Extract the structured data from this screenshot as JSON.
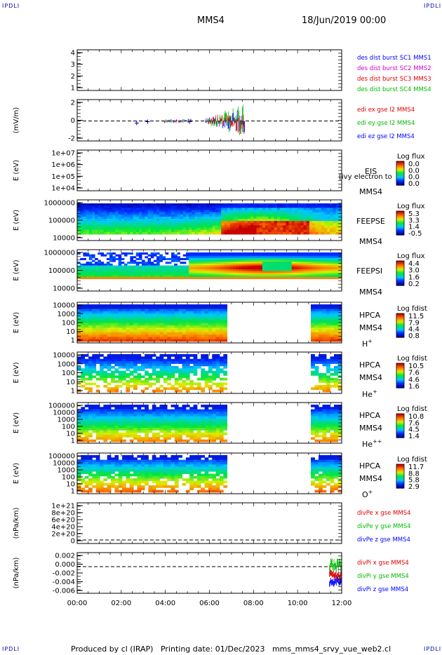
{
  "header": {
    "corner_logo": "IPDLI",
    "title": "MMS4",
    "date": "18/Jun/2019 00:00"
  },
  "footer": {
    "text": "Produced by cl (IRAP)   Printing date: 01/Dec/2023   mms_mms4_srvy_vue_web2.cl"
  },
  "chart_data": {
    "type": "multi-panel time series",
    "x": {
      "ticks": [
        "00:00",
        "02:00",
        "04:00",
        "06:00",
        "08:00",
        "10:00",
        "12:00"
      ],
      "range_hours": [
        0,
        12
      ]
    },
    "gap_hours": [
      6.8,
      10.6
    ],
    "panels": [
      {
        "id": "burst",
        "type": "line",
        "yticks": [
          "4",
          "3",
          "2",
          "1"
        ],
        "legend": [
          {
            "text": "des dist burst SC1 MMS1",
            "color": "#0000ff"
          },
          {
            "text": "des dist burst SC2 MMS2",
            "color": "#cc00cc"
          },
          {
            "text": "des dist burst SC3 MMS3",
            "color": "#dd0000"
          },
          {
            "text": "des dist burst SC4 MMS4",
            "color": "#00bb00"
          }
        ]
      },
      {
        "id": "edi",
        "type": "line",
        "ylabel": "(mV/m)",
        "yticks": [
          "2",
          "0",
          "-2"
        ],
        "dashed_zero": true,
        "legend": [
          {
            "text": "edi ex gse l2 MMS4",
            "color": "#dd0000"
          },
          {
            "text": "edi ey gse l2 MMS4",
            "color": "#00bb00"
          },
          {
            "text": "edi ez gse l2 MMS4",
            "color": "#0000ff"
          }
        ]
      },
      {
        "id": "eis",
        "type": "heatmap",
        "ylabel": "E (eV)",
        "yticks": [
          "1e+07",
          "1e+06",
          "1e+05",
          "1e+04"
        ],
        "labels": [
          "EIS",
          "MMS4"
        ],
        "overlay_text": "[ivy electron to",
        "cbar_title": "Log flux",
        "cbar_ticks": [
          "0.0",
          "0.0",
          "0.0",
          "0.0"
        ]
      },
      {
        "id": "feepse",
        "type": "heatmap",
        "ylabel": "E (eV)",
        "yticks": [
          "1000000",
          "100000",
          "10000"
        ],
        "labels": [
          "FEEPSE",
          "MMS4"
        ],
        "cbar_title": "Log flux",
        "cbar_ticks": [
          "5.3",
          "3.3",
          "1.4",
          "-0.5"
        ]
      },
      {
        "id": "feepsi",
        "type": "heatmap",
        "ylabel": "E (eV)",
        "yticks": [
          "1000000",
          "100000",
          "10000"
        ],
        "labels": [
          "FEEPSI",
          "MMS4"
        ],
        "cbar_title": "Log flux",
        "cbar_ticks": [
          "4.4",
          "3.0",
          "1.6",
          "0.2"
        ]
      },
      {
        "id": "hpca_h",
        "type": "heatmap",
        "ylabel": "E (eV)",
        "yticks": [
          "10000",
          "1000",
          "100",
          "10",
          "1"
        ],
        "labels": [
          "HPCA",
          "MMS4"
        ],
        "species": "H",
        "species_sup": "+",
        "cbar_title": "Log fdist",
        "cbar_ticks": [
          "11.5",
          "7.9",
          "4.4",
          "0.8"
        ]
      },
      {
        "id": "hpca_he",
        "type": "heatmap",
        "ylabel": "E (eV)",
        "yticks": [
          "10000",
          "1000",
          "100",
          "10",
          "1"
        ],
        "labels": [
          "HPCA",
          "MMS4"
        ],
        "species": "He",
        "species_sup": "+",
        "cbar_title": "Log fdist",
        "cbar_ticks": [
          "10.5",
          "7.6",
          "4.6",
          "1.6"
        ]
      },
      {
        "id": "hpca_hepp",
        "type": "heatmap",
        "ylabel": "E (eV)",
        "yticks": [
          "100000",
          "10000",
          "1000",
          "100",
          "10",
          "1"
        ],
        "labels": [
          "HPCA",
          "MMS4"
        ],
        "species": "He",
        "species_sup": "++",
        "cbar_title": "Log fdist",
        "cbar_ticks": [
          "10.8",
          "7.6",
          "4.5",
          "1.4"
        ]
      },
      {
        "id": "hpca_o",
        "type": "heatmap",
        "ylabel": "E (eV)",
        "yticks": [
          "100000",
          "10000",
          "1000",
          "100",
          "10",
          "1"
        ],
        "labels": [
          "HPCA",
          "MMS4"
        ],
        "species": "O",
        "species_sup": "+",
        "cbar_title": "Log fdist",
        "cbar_ticks": [
          "11.7",
          "8.8",
          "5.8",
          "2.9"
        ]
      },
      {
        "id": "divpe",
        "type": "line",
        "ylabel": "(nPa/km)",
        "yticks": [
          "1e+21",
          "8e+20",
          "6e+20",
          "4e+20",
          "2e+20",
          "0"
        ],
        "dashed_zero": true,
        "legend": [
          {
            "text": "divPe x gse MMS4",
            "color": "#dd0000"
          },
          {
            "text": "divPe y gse MMS4",
            "color": "#00bb00"
          },
          {
            "text": "divPe z gse MMS4",
            "color": "#0000ff"
          }
        ]
      },
      {
        "id": "divpi",
        "type": "line",
        "ylabel": "(nPa/km)",
        "yticks": [
          "0.002",
          "0.000",
          "-0.002",
          "-0.004",
          "-0.006"
        ],
        "dashed_zero": true,
        "legend": [
          {
            "text": "divPi x gse MMS4",
            "color": "#dd0000"
          },
          {
            "text": "divPi y gse MMS4",
            "color": "#00bb00"
          },
          {
            "text": "divPi z gse MMS4",
            "color": "#0000ff"
          }
        ]
      }
    ]
  }
}
